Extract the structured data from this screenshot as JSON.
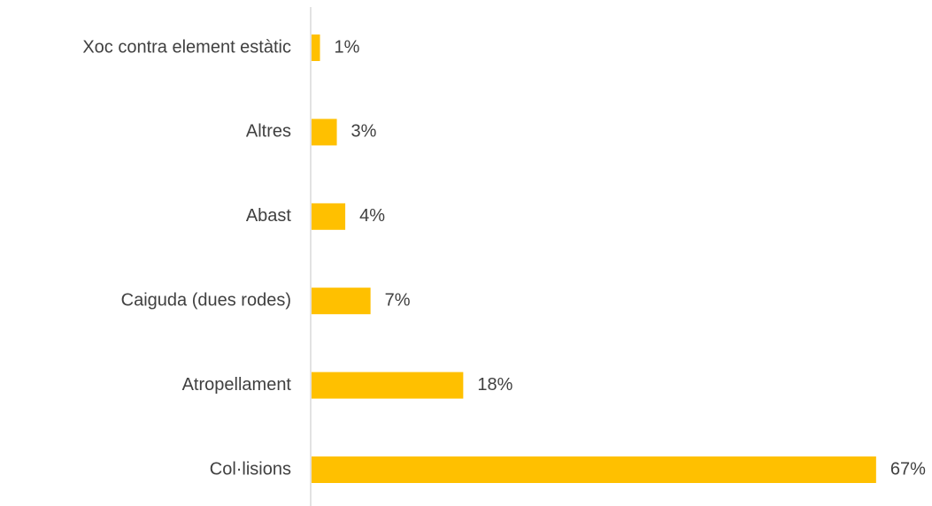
{
  "chart_data": {
    "type": "bar",
    "orientation": "horizontal",
    "categories": [
      "Xoc contra element estàtic",
      "Altres",
      "Abast",
      "Caiguda (dues rodes)",
      "Atropellament",
      "Col·lisions"
    ],
    "values": [
      1,
      3,
      4,
      7,
      18,
      67
    ],
    "value_labels": [
      "1%",
      "3%",
      "4%",
      "7%",
      "18%",
      "67%"
    ],
    "color": "#FFC000"
  }
}
